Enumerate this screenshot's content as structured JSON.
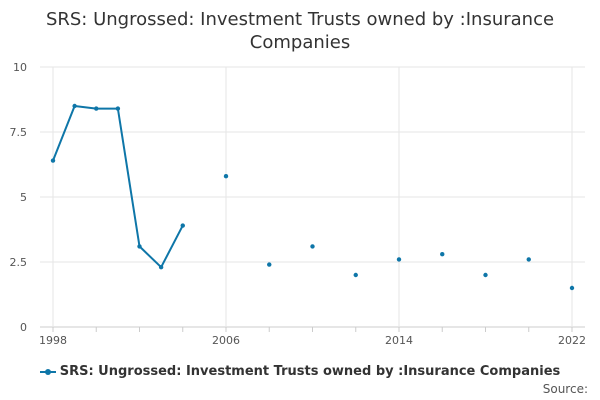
{
  "chart_data": {
    "type": "line",
    "title": "SRS: Ungrossed: Investment Trusts owned by :Insurance Companies",
    "xlabel": "",
    "ylabel": "",
    "xlim": [
      1998,
      2022
    ],
    "ylim": [
      0,
      10
    ],
    "y_ticks": [
      0,
      2.5,
      5,
      7.5,
      10
    ],
    "y_tick_labels": [
      "0",
      "2.5",
      "5",
      "7.5",
      "10"
    ],
    "x_ticks": [
      1998,
      2006,
      2014,
      2022
    ],
    "x_tick_labels": [
      "1998",
      "2006",
      "2014",
      "2022"
    ],
    "grid": true,
    "legend_position": "bottom",
    "series": [
      {
        "name": "SRS: Ungrossed: Investment Trusts owned by :Insurance Companies",
        "color": "#0e76a8",
        "x": [
          1998,
          1999,
          2000,
          2001,
          2002,
          2003,
          2004,
          2006,
          2008,
          2010,
          2012,
          2014,
          2016,
          2018,
          2020,
          2022
        ],
        "values": [
          6.4,
          8.5,
          8.4,
          8.4,
          3.1,
          2.3,
          3.9,
          5.8,
          2.4,
          3.1,
          2.0,
          2.6,
          2.8,
          2.0,
          2.6,
          1.5
        ]
      }
    ]
  },
  "source_label": "Source:"
}
